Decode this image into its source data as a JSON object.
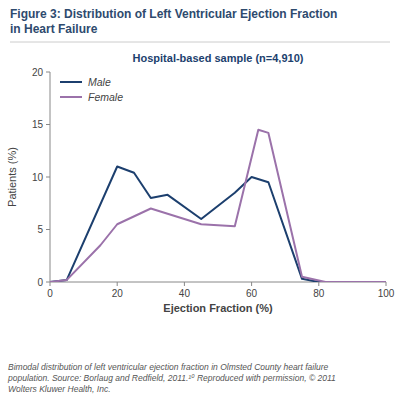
{
  "chart_data": {
    "type": "line",
    "title": "Figure 3: Distribution of Left Ventricular Ejection Fraction\nin Heart Failure",
    "subtitle": "Hospital-based sample (n=4,910)",
    "x_label": "Ejection Fraction (%)",
    "y_label": "Patients (%)",
    "caption": "Bimodal distribution of left ventricular ejection fraction in Olmsted County heart failure\npopulation. Source: Borlaug and Redfield, 2011.¹⁰ Reproduced with permission, © 2011\nWolters Kluwer Health, Inc.",
    "series": [
      {
        "name": "Male",
        "color": "#1c3f6e",
        "x": [
          0,
          5,
          20,
          25,
          30,
          35,
          45,
          55,
          60,
          65,
          75,
          80,
          90,
          100
        ],
        "values": [
          0,
          0.2,
          11,
          10.4,
          8.0,
          8.3,
          6.0,
          8.5,
          10.0,
          9.5,
          0.3,
          0.0,
          0.0,
          0.0
        ]
      },
      {
        "name": "Female",
        "color": "#9b72aa",
        "x": [
          0,
          5,
          15,
          20,
          30,
          35,
          45,
          55,
          62,
          65,
          75,
          82,
          88,
          100
        ],
        "values": [
          0,
          0.2,
          3.5,
          5.5,
          7.0,
          6.5,
          5.5,
          5.3,
          14.5,
          14.2,
          0.5,
          0.0,
          0.0,
          0.0
        ]
      }
    ],
    "xlim": [
      0,
      100
    ],
    "ylim": [
      0,
      20
    ],
    "xticks": [
      0,
      20,
      40,
      60,
      80,
      100
    ],
    "yticks": [
      0,
      5,
      10,
      15,
      20
    ],
    "legend": "upper-left",
    "grid": false
  }
}
